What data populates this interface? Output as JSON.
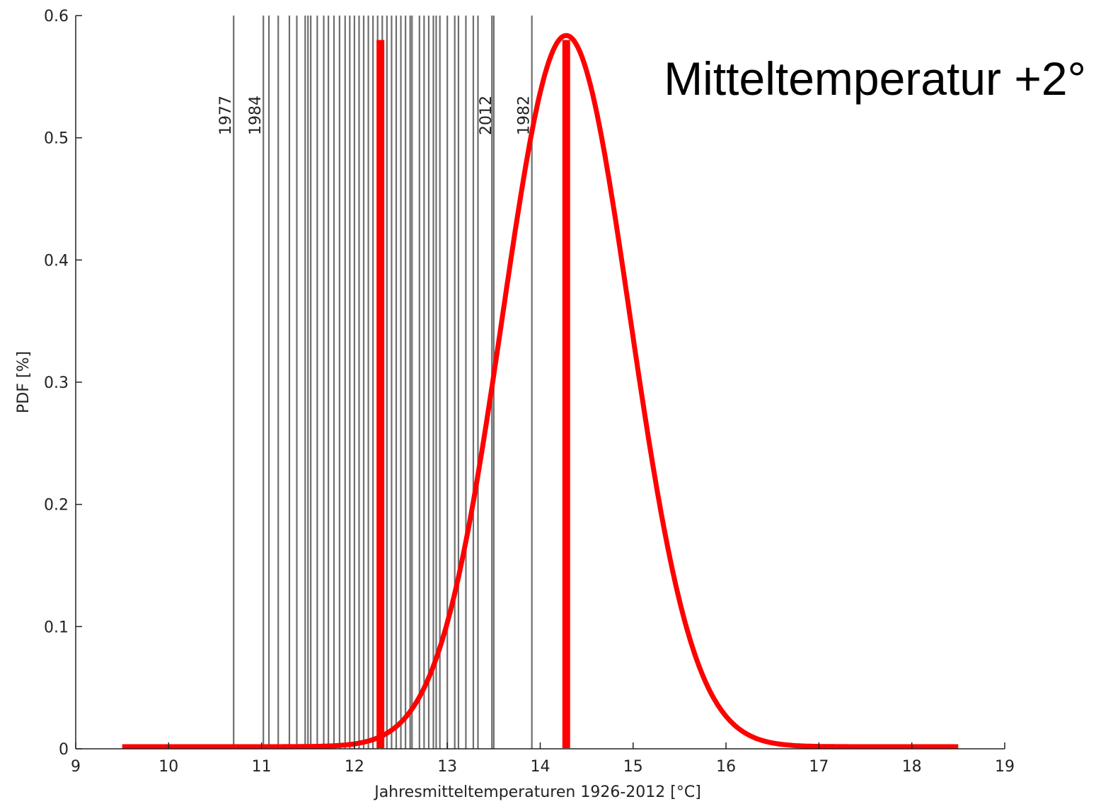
{
  "chart_data": {
    "type": "line",
    "title": "",
    "annotation": "Mitteltemperatur +2°",
    "xlabel": "Jahresmitteltemperaturen 1926-2012 [°C]",
    "ylabel": "PDF [%]",
    "xlim": [
      9,
      19
    ],
    "ylim": [
      0,
      0.6
    ],
    "xticks": [
      "9",
      "10",
      "11",
      "12",
      "13",
      "14",
      "15",
      "16",
      "17",
      "18",
      "19"
    ],
    "yticks": [
      "0",
      "0.1",
      "0.2",
      "0.3",
      "0.4",
      "0.5",
      "0.6"
    ],
    "grid": false,
    "colors": {
      "curve": "#ff0000",
      "observations": "#6e6e6e",
      "axis": "#222222"
    },
    "observations": {
      "labeled": [
        {
          "year": "1977",
          "x": 10.7
        },
        {
          "year": "1984",
          "x": 11.02
        },
        {
          "year": "2012",
          "x": 13.5
        },
        {
          "year": "1982",
          "x": 13.91
        }
      ],
      "values": [
        10.7,
        11.02,
        11.08,
        11.18,
        11.3,
        11.38,
        11.47,
        11.5,
        11.53,
        11.6,
        11.67,
        11.72,
        11.78,
        11.84,
        11.9,
        11.95,
        12.0,
        12.05,
        12.1,
        12.15,
        12.2,
        12.25,
        12.3,
        12.35,
        12.4,
        12.45,
        12.5,
        12.55,
        12.6,
        12.62,
        12.7,
        12.75,
        12.8,
        12.85,
        12.88,
        12.92,
        13.0,
        13.08,
        13.12,
        13.2,
        13.28,
        13.33,
        13.48,
        13.5,
        13.91
      ]
    },
    "series": [
      {
        "distribution": "normal",
        "mean": 14.28,
        "sd": 0.685,
        "peak": 0.582,
        "x_range": [
          9.5,
          18.5
        ]
      }
    ],
    "vertical_markers": [
      {
        "x": 12.28,
        "y_top": 0.58
      },
      {
        "x": 14.28,
        "y_top": 0.58
      }
    ]
  }
}
